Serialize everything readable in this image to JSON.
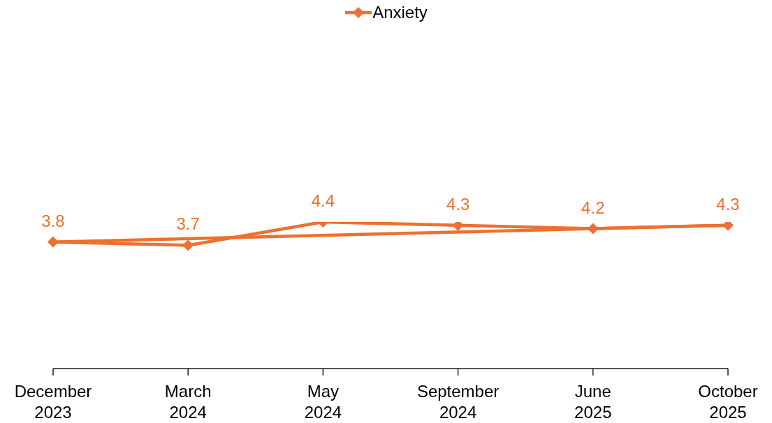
{
  "chart_data": {
    "type": "line",
    "categories": [
      "December 2023",
      "March 2024",
      "May 2024",
      "September 2024",
      "June 2025",
      "October 2025"
    ],
    "series": [
      {
        "name": "Anxiety",
        "color": "#ed7031",
        "values": [
          3.8,
          3.7,
          4.4,
          4.3,
          4.2,
          4.3
        ],
        "value_labels": [
          "3.8",
          "3.7",
          "4.4",
          "4.3",
          "4.2",
          "4.3"
        ]
      },
      {
        "type": "line",
        "x": [
          "December 2023",
          "October 2025"
        ],
        "values": [
          3.8,
          4.3
        ],
        "color": "#ed7031",
        "marker": "none"
      }
    ],
    "legend": "top",
    "marker": "diamond",
    "line_style": "solid",
    "tick_labels": "x"
  }
}
